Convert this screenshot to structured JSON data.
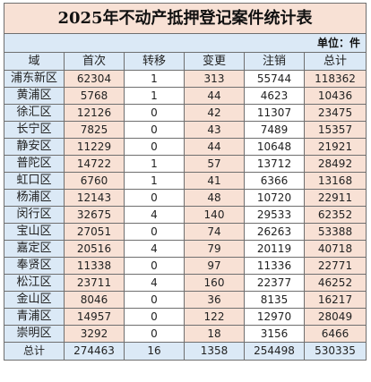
{
  "title": "2025年不动产抵押登记案件统计表",
  "unit_label": "单位：件",
  "headers": [
    "域",
    "首次",
    "转移",
    "变更",
    "注销",
    "总计"
  ],
  "rows": [
    [
      "浦东新区",
      "62304",
      "1",
      "313",
      "55744",
      "118362"
    ],
    [
      "黄浦区",
      "5768",
      "1",
      "44",
      "4623",
      "10436"
    ],
    [
      "徐汇区",
      "12126",
      "0",
      "42",
      "11307",
      "23475"
    ],
    [
      "长宁区",
      "7825",
      "0",
      "43",
      "7489",
      "15357"
    ],
    [
      "静安区",
      "11229",
      "0",
      "44",
      "10648",
      "21921"
    ],
    [
      "普陀区",
      "14722",
      "1",
      "57",
      "13712",
      "28492"
    ],
    [
      "虹口区",
      "6760",
      "1",
      "41",
      "6366",
      "13168"
    ],
    [
      "杨浦区",
      "12143",
      "0",
      "48",
      "10720",
      "22911"
    ],
    [
      "闵行区",
      "32675",
      "4",
      "140",
      "29533",
      "62352"
    ],
    [
      "宝山区",
      "27051",
      "0",
      "74",
      "26263",
      "53388"
    ],
    [
      "嘉定区",
      "20516",
      "4",
      "79",
      "20119",
      "40718"
    ],
    [
      "奉贤区",
      "11338",
      "0",
      "97",
      "11336",
      "22771"
    ],
    [
      "松江区",
      "23711",
      "4",
      "160",
      "22377",
      "46252"
    ],
    [
      "金山区",
      "8046",
      "0",
      "36",
      "8135",
      "16217"
    ],
    [
      "青浦区",
      "14957",
      "0",
      "122",
      "12970",
      "28049"
    ],
    [
      "崇明区",
      "3292",
      "0",
      "18",
      "3156",
      "6466"
    ]
  ],
  "total_row": [
    "总计",
    "274463",
    "16",
    "1358",
    "254498",
    "530335"
  ]
}
